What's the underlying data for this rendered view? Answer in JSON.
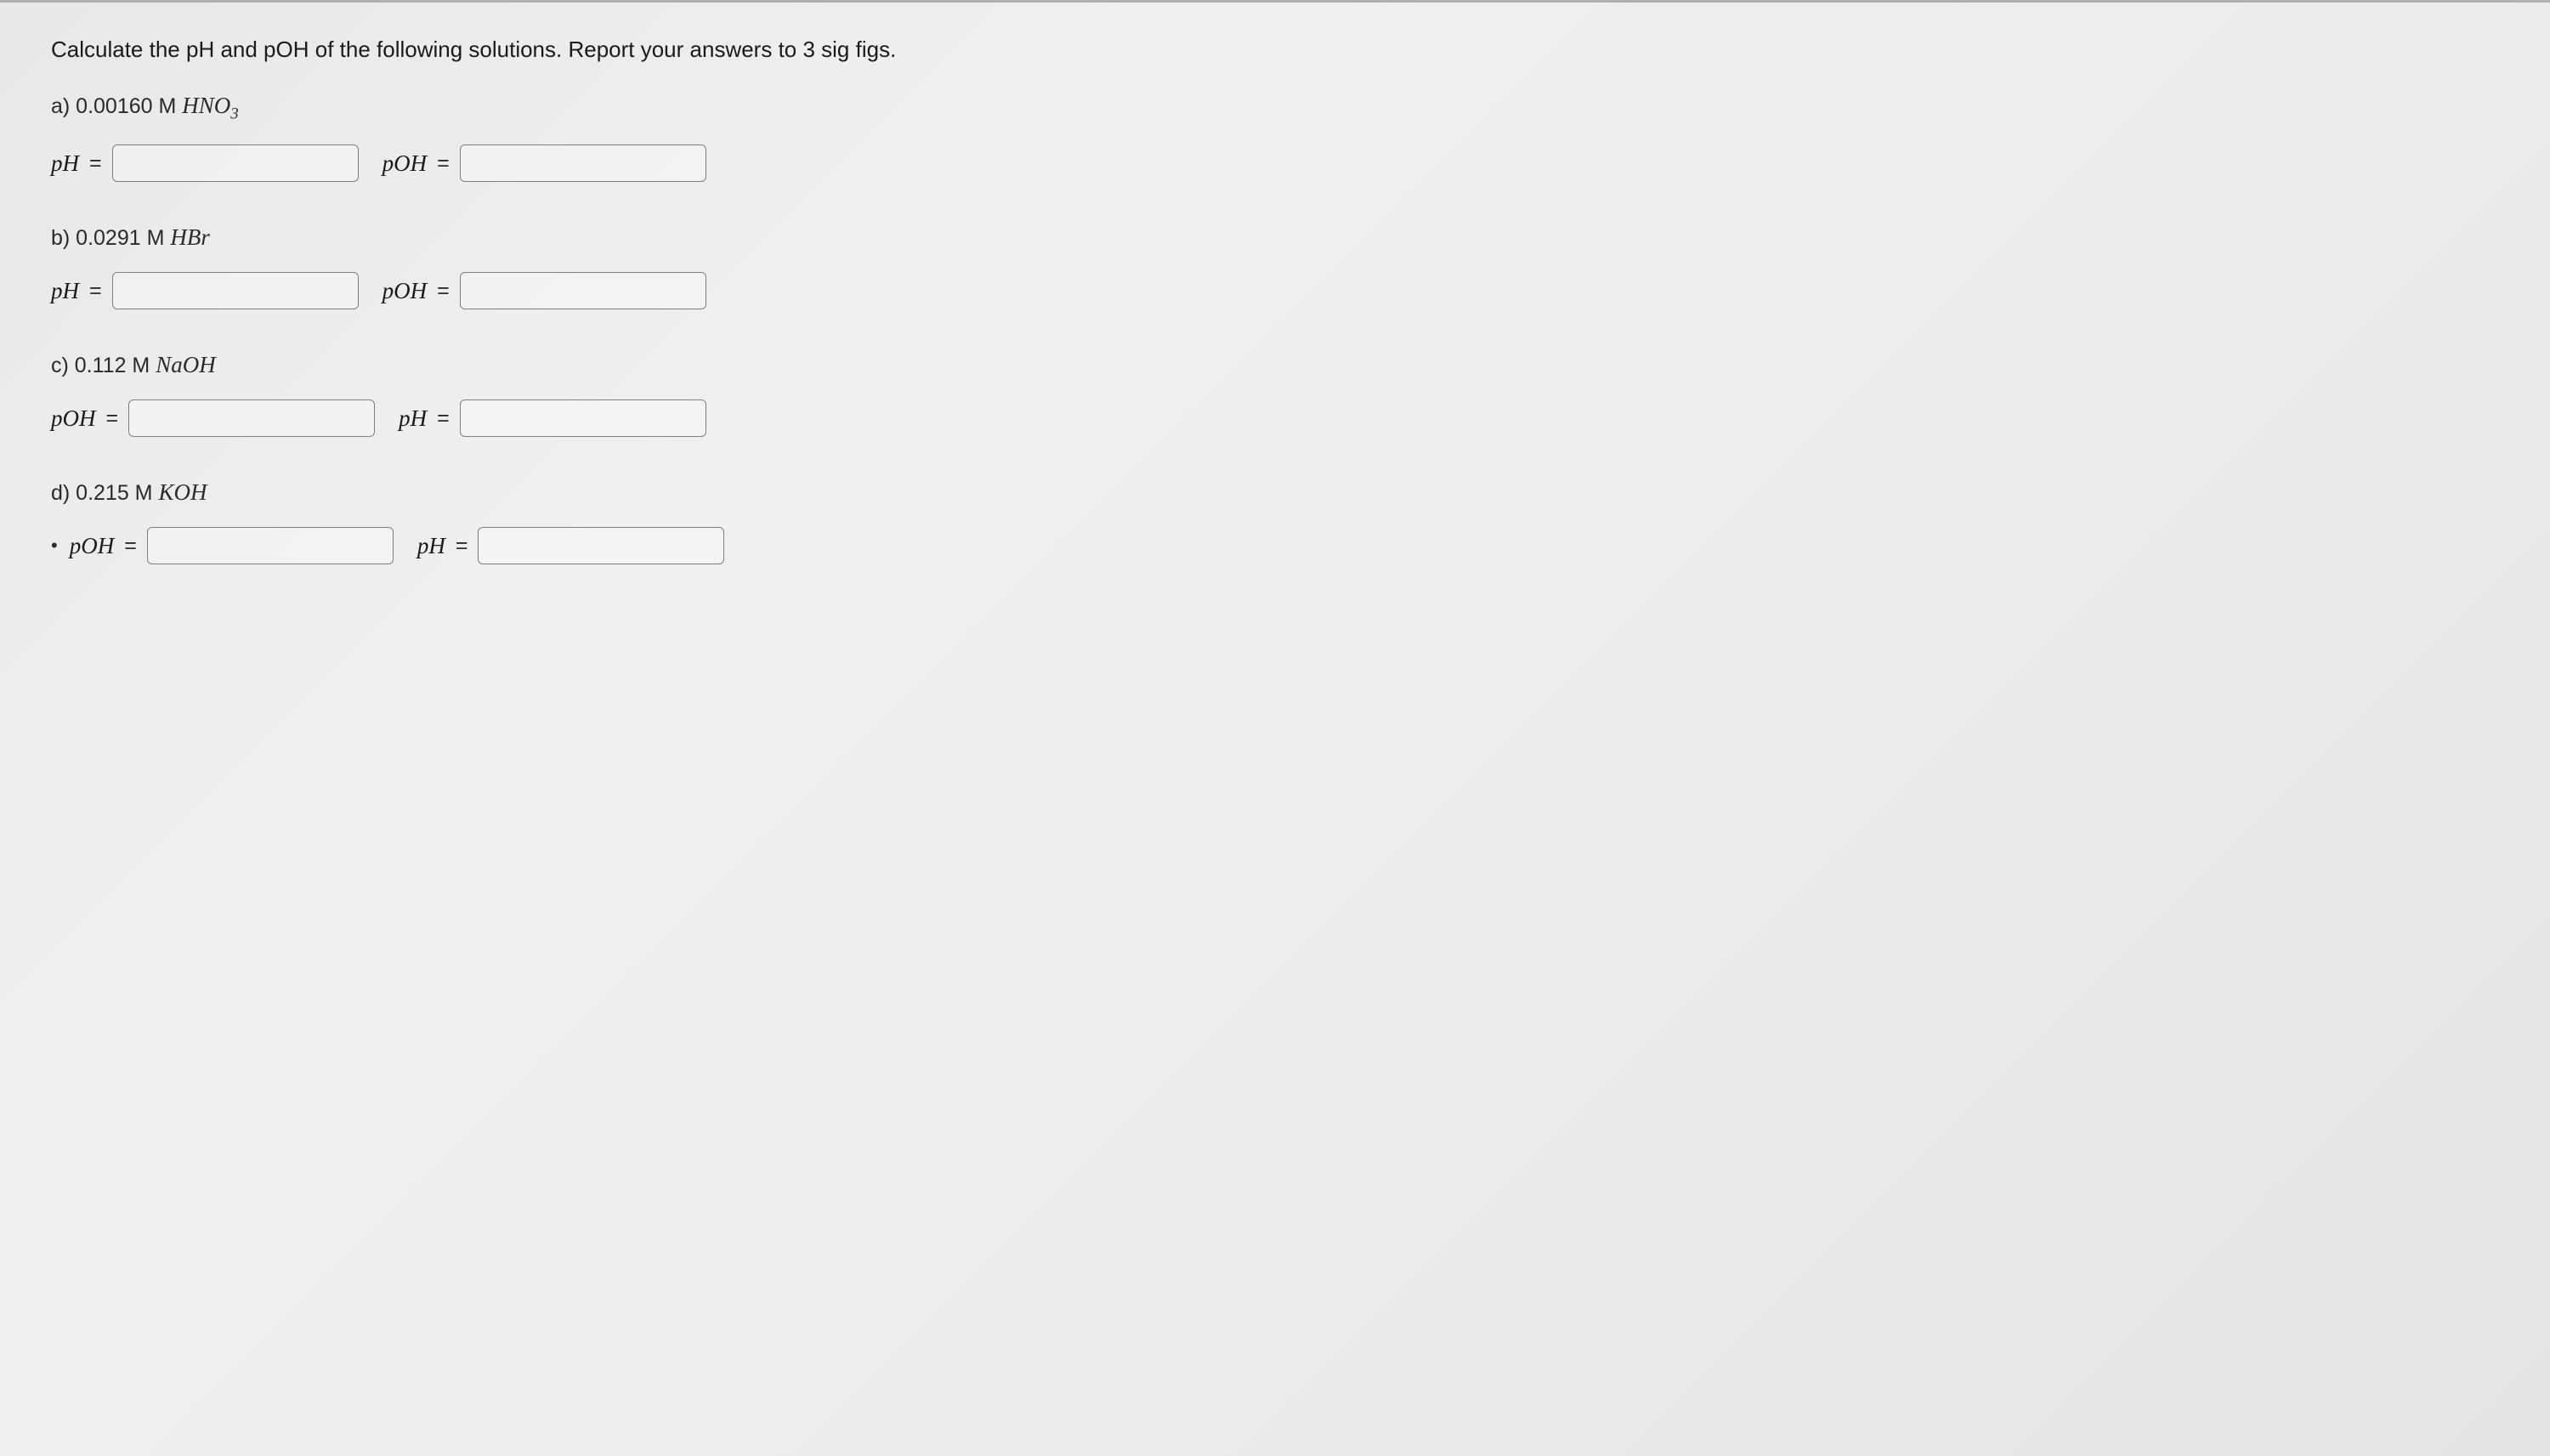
{
  "prompt": "Calculate the pH and pOH of the following solutions. Report your answers to 3 sig figs.",
  "parts": {
    "a": {
      "label_prefix": "a) 0.00160 M ",
      "formula": "HNO",
      "subscript": "3",
      "first_var": "pH",
      "second_var": "pOH"
    },
    "b": {
      "label_prefix": "b) 0.0291 M ",
      "formula": "HBr",
      "subscript": "",
      "first_var": "pH",
      "second_var": "pOH"
    },
    "c": {
      "label_prefix": "c) 0.112 M ",
      "formula": "NaOH",
      "subscript": "",
      "first_var": "pOH",
      "second_var": "pH"
    },
    "d": {
      "label_prefix": "d) 0.215 M ",
      "formula": "KOH",
      "subscript": "",
      "first_var": "pOH",
      "second_var": "pH",
      "bullet": true
    }
  },
  "equals": "=",
  "colors": {
    "text": "#2a2a2a",
    "border": "#808080",
    "background_start": "#e8e8ea",
    "background_end": "#e4e4e6"
  },
  "typography": {
    "body_font": "Arial, Helvetica, sans-serif",
    "formula_font": "Times New Roman, Times, serif",
    "prompt_fontsize": 26,
    "label_fontsize": 25,
    "formula_fontsize": 27
  },
  "layout": {
    "input_width": 290,
    "input_height": 44,
    "input_radius": 6,
    "part_spacing": 50
  }
}
